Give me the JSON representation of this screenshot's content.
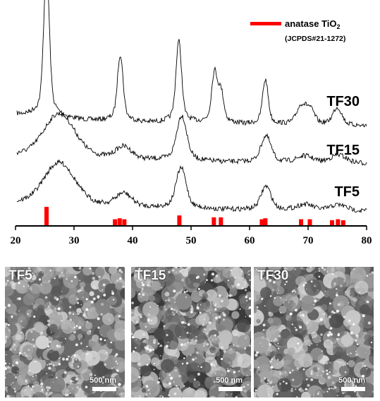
{
  "chart_data": {
    "type": "line",
    "title": "",
    "xlabel": "",
    "ylabel": "",
    "xlim": [
      20,
      80
    ],
    "x_ticks": [
      "20",
      "30",
      "40",
      "50",
      "60",
      "70",
      "80"
    ],
    "legend": {
      "label_main": "anatase TiO",
      "label_sub": "2",
      "label_ref": "(JCPDS#21-1272)",
      "color": "#ff0000",
      "placement": "top-right"
    },
    "series": [
      {
        "name": "TF30",
        "color": "#000000",
        "peaks": [
          [
            25.3,
            1.0
          ],
          [
            37.9,
            0.45
          ],
          [
            47.9,
            0.55
          ],
          [
            54.0,
            0.33
          ],
          [
            55.1,
            0.2
          ],
          [
            62.7,
            0.3
          ],
          [
            68.8,
            0.12
          ],
          [
            70.3,
            0.1
          ],
          [
            75.0,
            0.12
          ]
        ]
      },
      {
        "name": "TF15",
        "color": "#000000",
        "peaks": [
          [
            27.5,
            0.55
          ],
          [
            38.5,
            0.15
          ],
          [
            48.4,
            0.55
          ],
          [
            62.8,
            0.32
          ],
          [
            69.5,
            0.08
          ],
          [
            75.2,
            0.1
          ]
        ]
      },
      {
        "name": "TF5",
        "color": "#000000",
        "peaks": [
          [
            27.5,
            0.6
          ],
          [
            38.5,
            0.18
          ],
          [
            48.3,
            0.55
          ],
          [
            62.8,
            0.32
          ],
          [
            69.5,
            0.08
          ],
          [
            75.2,
            0.08
          ]
        ]
      }
    ],
    "reference_bars": {
      "name": "anatase TiO2 (JCPDS#21-1272)",
      "color": "#ff0000",
      "x": [
        25.3,
        37.0,
        37.8,
        38.6,
        48.0,
        53.9,
        55.1,
        62.1,
        62.7,
        68.8,
        70.3,
        74.1,
        75.1,
        76.0
      ],
      "intensity": [
        1.0,
        0.35,
        0.4,
        0.35,
        0.55,
        0.45,
        0.45,
        0.35,
        0.4,
        0.35,
        0.35,
        0.3,
        0.35,
        0.3
      ]
    }
  },
  "sem_panels": [
    {
      "label": "TF5",
      "scale": "500 nm"
    },
    {
      "label": "TF15",
      "scale": "500 nm"
    },
    {
      "label": "TF30",
      "scale": "500 nm"
    }
  ]
}
